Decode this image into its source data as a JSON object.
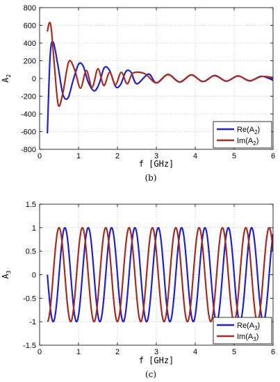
{
  "chart_data": [
    {
      "type": "line",
      "panel_label": "(b)",
      "xlabel": "f  [GHz]",
      "ylabel_main": "A",
      "ylabel_sub": "2",
      "xlim": [
        0,
        6
      ],
      "ylim": [
        -800,
        800
      ],
      "xticks": [
        0,
        1,
        2,
        3,
        4,
        5,
        6
      ],
      "yticks": [
        -800,
        -600,
        -400,
        -200,
        0,
        200,
        400,
        600,
        800
      ],
      "grid": true,
      "legend_position": "bottom-right",
      "f_start": 0.2,
      "f_end": 6,
      "series": [
        {
          "name_main": "Re(A",
          "name_sub": "2",
          "name_close": ")",
          "color": "#1f1fcc",
          "x": [
            0.2,
            0.27,
            0.35,
            0.47,
            0.6,
            0.73,
            0.85,
            1.0,
            1.12,
            1.25,
            1.4,
            1.53,
            1.66,
            1.8,
            1.95,
            2.08,
            2.22,
            2.35,
            2.5,
            2.8,
            3.0,
            3.3,
            3.6,
            3.9,
            4.2,
            4.5,
            4.8,
            5.1,
            5.4,
            5.7,
            6.0
          ],
          "y": [
            -620,
            250,
            410,
            150,
            -180,
            -220,
            -40,
            160,
            140,
            -40,
            -140,
            -60,
            120,
            90,
            -90,
            -70,
            80,
            70,
            -60,
            50,
            -50,
            45,
            -40,
            40,
            -35,
            35,
            -30,
            30,
            -28,
            25,
            -20
          ]
        },
        {
          "name_main": "Im(A",
          "name_sub": "2",
          "name_close": ")",
          "color": "#a52a1f",
          "x": [
            0.2,
            0.25,
            0.3,
            0.38,
            0.48,
            0.6,
            0.75,
            0.9,
            1.05,
            1.2,
            1.35,
            1.5,
            1.65,
            1.8,
            1.95,
            2.1,
            2.25,
            2.4,
            2.7,
            3.0,
            3.3,
            3.6,
            3.9,
            4.2,
            4.5,
            4.8,
            5.1,
            5.4,
            5.7,
            6.0
          ],
          "y": [
            530,
            630,
            560,
            150,
            -300,
            -160,
            190,
            100,
            -110,
            90,
            -100,
            110,
            -80,
            70,
            -70,
            70,
            -60,
            60,
            55,
            -50,
            45,
            -40,
            40,
            -35,
            32,
            -30,
            28,
            -25,
            22,
            10
          ]
        }
      ]
    },
    {
      "type": "line",
      "panel_label": "(c)",
      "xlabel": "f  [GHz]",
      "ylabel_main": "A",
      "ylabel_sub": "3",
      "xlim": [
        0,
        6
      ],
      "ylim": [
        -1.5,
        1.5
      ],
      "xticks": [
        0,
        1,
        2,
        3,
        4,
        5,
        6
      ],
      "yticks": [
        -1.5,
        -1,
        -0.5,
        0,
        0.5,
        1,
        1.5
      ],
      "grid": true,
      "legend_position": "bottom-right",
      "f_start": 0.2,
      "f_end": 6,
      "period_ghz": 0.6,
      "series": [
        {
          "name_main": "Re(A",
          "name_sub": "3",
          "name_close": ")",
          "color": "#1f1fcc",
          "peak_x": [
            0.65,
            1.25,
            1.85,
            2.45,
            3.05,
            3.65,
            4.25,
            4.85,
            5.45
          ],
          "amplitude": 1
        },
        {
          "name_main": "Im(A",
          "name_sub": "3",
          "name_close": ")",
          "color": "#a52a1f",
          "peak_x": [
            0.5,
            1.1,
            1.7,
            2.3,
            2.9,
            3.5,
            4.1,
            4.7,
            5.3,
            5.9
          ],
          "amplitude": 1
        }
      ]
    }
  ]
}
